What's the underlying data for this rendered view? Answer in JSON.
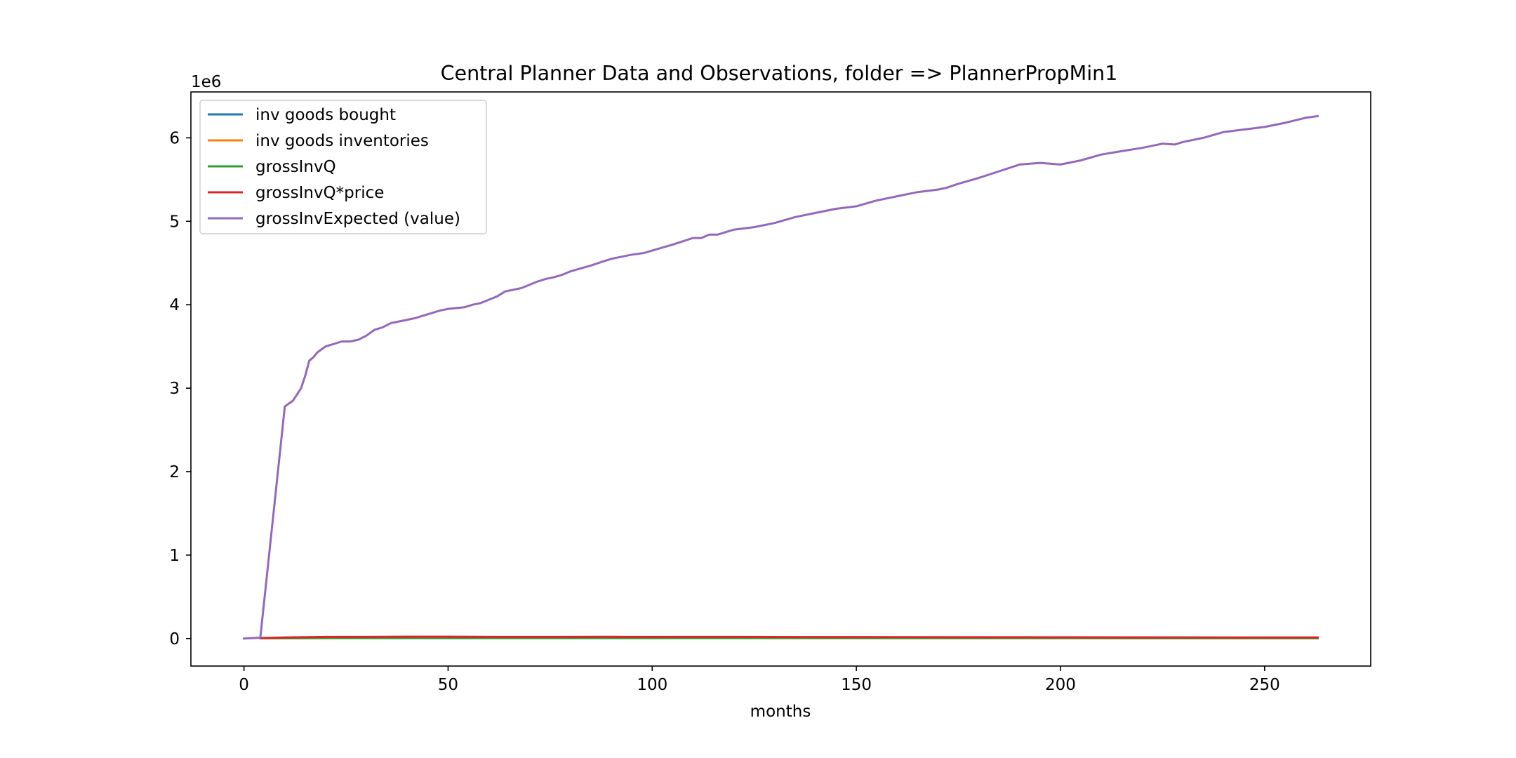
{
  "chart_data": {
    "type": "line",
    "title": "Central Planner Data and Observations, folder => PlannerPropMin1",
    "xlabel": "months",
    "ylabel": "",
    "y_offset_label": "1e6",
    "xlim": [
      -13,
      276
    ],
    "ylim": [
      -0.33,
      6.55
    ],
    "xticks": [
      0,
      50,
      100,
      150,
      200,
      250
    ],
    "xtick_labels": [
      "0",
      "50",
      "100",
      "150",
      "200",
      "250"
    ],
    "yticks": [
      0,
      1,
      2,
      3,
      4,
      5,
      6
    ],
    "ytick_labels": [
      "0",
      "1",
      "2",
      "3",
      "4",
      "5",
      "6"
    ],
    "grid": false,
    "legend_position": "upper left",
    "series": [
      {
        "name": "inv goods bought",
        "color": "#1f77b4",
        "x": [
          4,
          20,
          50,
          100,
          150,
          200,
          263
        ],
        "y": [
          0.002,
          0.004,
          0.005,
          0.005,
          0.004,
          0.004,
          0.003
        ]
      },
      {
        "name": "inv goods inventories",
        "color": "#ff7f0e",
        "x": [
          4,
          20,
          50,
          100,
          150,
          200,
          263
        ],
        "y": [
          0.003,
          0.006,
          0.007,
          0.007,
          0.006,
          0.005,
          0.004
        ]
      },
      {
        "name": "grossInvQ",
        "color": "#2ca02c",
        "x": [
          4,
          20,
          50,
          100,
          150,
          200,
          263
        ],
        "y": [
          0.004,
          0.008,
          0.009,
          0.009,
          0.008,
          0.007,
          0.006
        ]
      },
      {
        "name": "grossInvQ*price",
        "color": "#d62728",
        "x": [
          4,
          10,
          20,
          30,
          40,
          50,
          60,
          70,
          80,
          90,
          100,
          120,
          140,
          160,
          180,
          200,
          220,
          240,
          263
        ],
        "y": [
          0.005,
          0.012,
          0.02,
          0.02,
          0.022,
          0.022,
          0.02,
          0.02,
          0.02,
          0.021,
          0.02,
          0.02,
          0.018,
          0.017,
          0.016,
          0.015,
          0.014,
          0.013,
          0.012
        ]
      },
      {
        "name": "grossInvExpected (value)",
        "color": "#9467bd",
        "x": [
          0,
          4,
          10,
          12,
          14,
          15,
          16,
          17,
          18,
          20,
          22,
          24,
          26,
          28,
          30,
          32,
          34,
          36,
          38,
          40,
          42,
          44,
          46,
          48,
          50,
          54,
          56,
          58,
          60,
          62,
          64,
          66,
          68,
          70,
          72,
          74,
          76,
          78,
          80,
          85,
          88,
          90,
          95,
          98,
          100,
          105,
          110,
          112,
          114,
          116,
          120,
          125,
          130,
          135,
          140,
          145,
          150,
          155,
          160,
          165,
          170,
          172,
          175,
          180,
          185,
          190,
          195,
          200,
          205,
          210,
          215,
          220,
          225,
          228,
          230,
          235,
          240,
          245,
          250,
          255,
          260,
          263
        ],
        "y": [
          0.0,
          0.01,
          2.78,
          2.85,
          3.0,
          3.15,
          3.33,
          3.37,
          3.43,
          3.5,
          3.53,
          3.56,
          3.56,
          3.58,
          3.63,
          3.7,
          3.73,
          3.78,
          3.8,
          3.82,
          3.84,
          3.87,
          3.9,
          3.93,
          3.95,
          3.97,
          4.0,
          4.02,
          4.06,
          4.1,
          4.16,
          4.18,
          4.2,
          4.24,
          4.28,
          4.31,
          4.33,
          4.36,
          4.4,
          4.47,
          4.52,
          4.55,
          4.6,
          4.62,
          4.65,
          4.72,
          4.8,
          4.8,
          4.84,
          4.84,
          4.9,
          4.93,
          4.98,
          5.05,
          5.1,
          5.15,
          5.18,
          5.25,
          5.3,
          5.35,
          5.38,
          5.4,
          5.45,
          5.52,
          5.6,
          5.68,
          5.7,
          5.68,
          5.73,
          5.8,
          5.84,
          5.88,
          5.93,
          5.92,
          5.95,
          6.0,
          6.07,
          6.1,
          6.13,
          6.18,
          6.24,
          6.26
        ]
      }
    ]
  }
}
